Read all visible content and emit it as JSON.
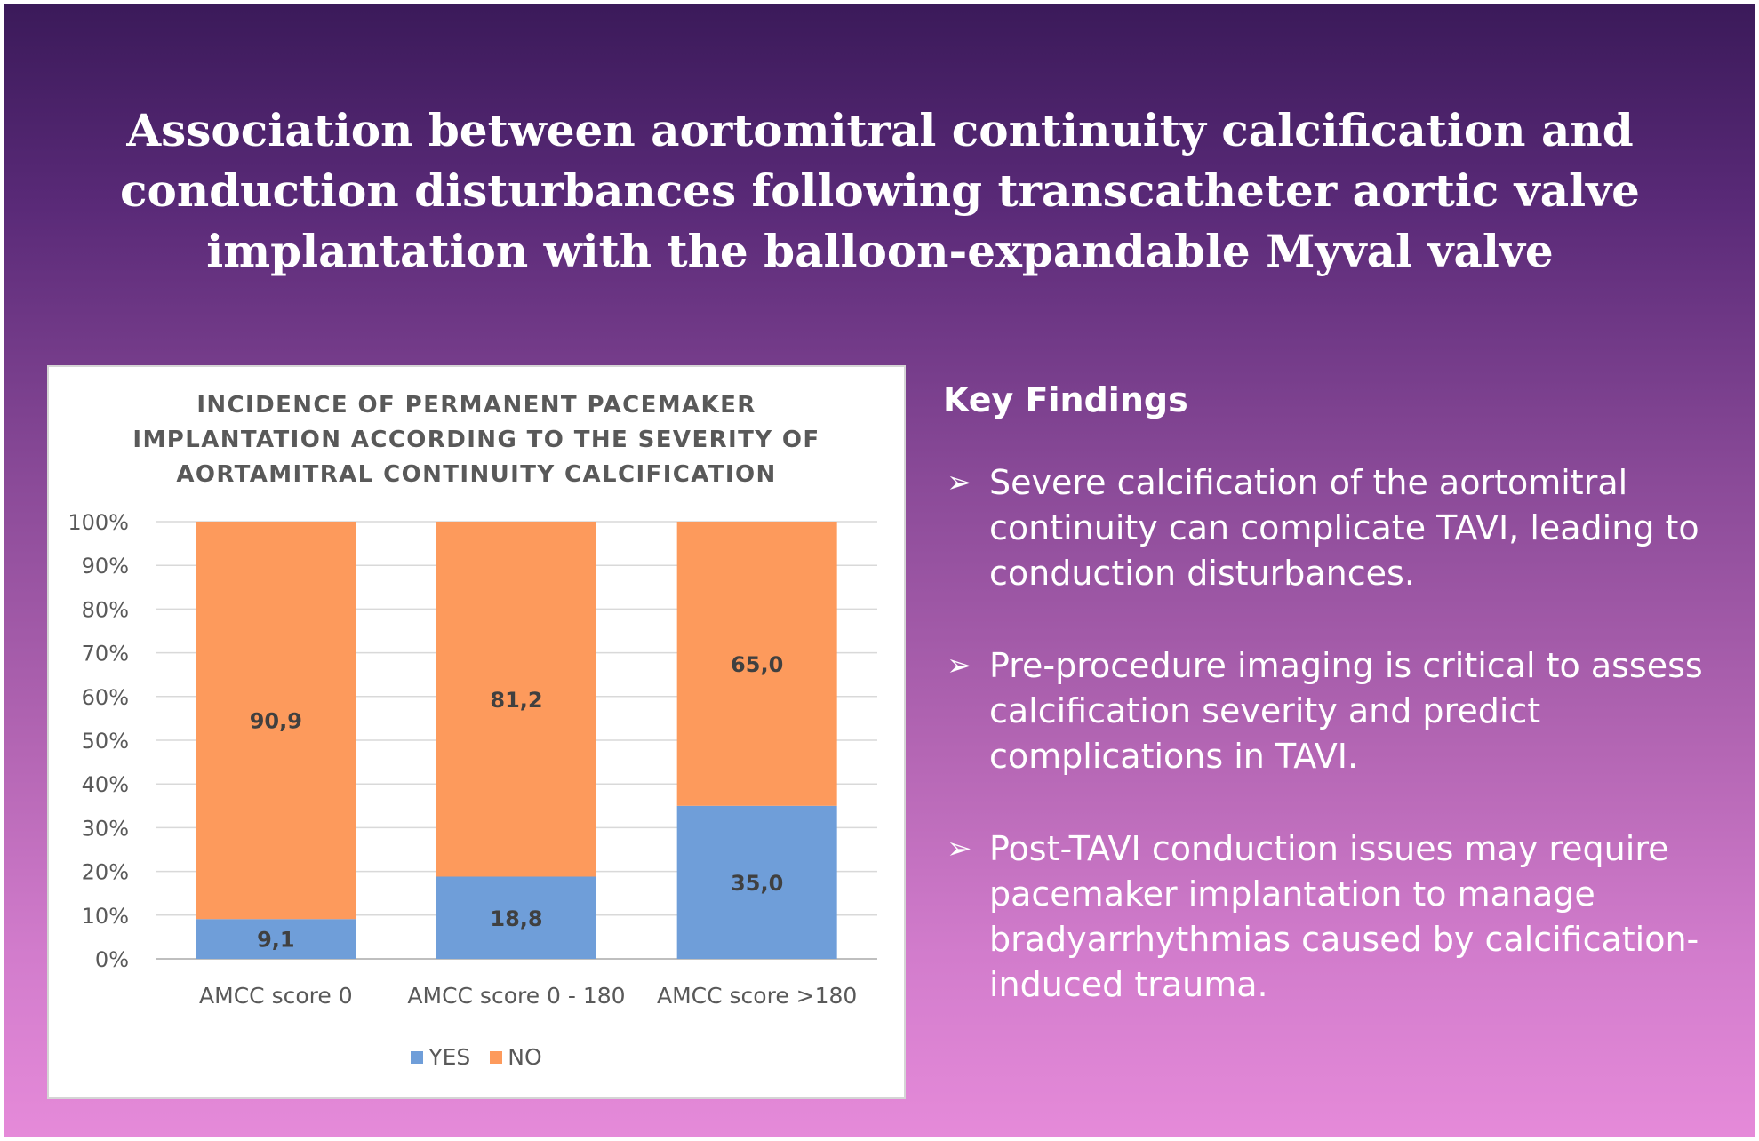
{
  "title": "Association between aortomitral continuity calcification and conduction disturbances following transcatheter aortic valve implantation with the balloon-expandable Myval valve",
  "colors": {
    "yes": "#6f9ed9",
    "no": "#fd9a5c",
    "text": "#404040",
    "axis_text": "#595959",
    "grid": "#d9d9d9"
  },
  "chart_data": {
    "type": "bar",
    "stacked": true,
    "title": "INCIDENCE OF PERMANENT PACEMAKER IMPLANTATION ACCORDING TO THE SEVERITY OF AORTAMITRAL CONTINUITY CALCIFICATION",
    "categories": [
      "AMCC score 0",
      "AMCC score 0 - 180",
      "AMCC score >180"
    ],
    "series": [
      {
        "name": "YES",
        "values": [
          9.1,
          18.8,
          35.0
        ],
        "labels": [
          "9,1",
          "18,8",
          "35,0"
        ]
      },
      {
        "name": "NO",
        "values": [
          90.9,
          81.2,
          65.0
        ],
        "labels": [
          "90,9",
          "81,2",
          "65,0"
        ]
      }
    ],
    "ylim": [
      0,
      100
    ],
    "yticks": [
      0,
      10,
      20,
      30,
      40,
      50,
      60,
      70,
      80,
      90,
      100
    ],
    "ytick_labels": [
      "0%",
      "10%",
      "20%",
      "30%",
      "40%",
      "50%",
      "60%",
      "70%",
      "80%",
      "90%",
      "100%"
    ],
    "grid": true,
    "legend": "bottom"
  },
  "key_findings": {
    "heading": "Key Findings",
    "bullet": "➢",
    "items": [
      "Severe calcification of the aortomitral continuity can complicate TAVI, leading to conduction disturbances.",
      "Pre-procedure imaging is critical to assess calcification severity and predict complications in TAVI.",
      "Post-TAVI conduction issues may require pacemaker implantation to manage bradyarrhythmias caused by calcification-induced trauma."
    ]
  }
}
